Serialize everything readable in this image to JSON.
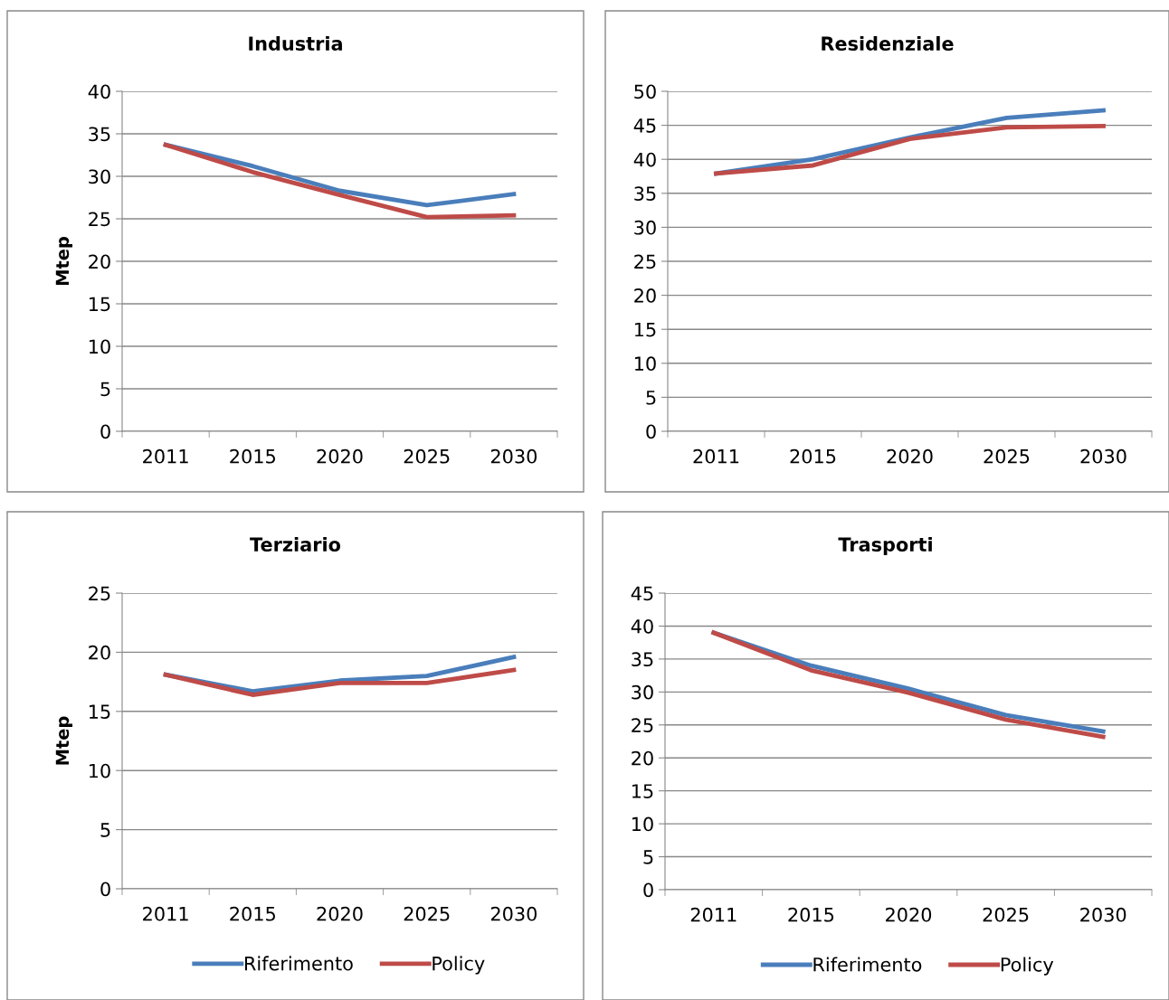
{
  "chart_data": [
    {
      "type": "line",
      "title": "Industria",
      "ylabel": "Mtep",
      "categories": [
        "2011",
        "2015",
        "2020",
        "2025",
        "2030"
      ],
      "ylim": [
        0,
        40
      ],
      "yticks": [
        0,
        5,
        10,
        15,
        20,
        25,
        30,
        35,
        40
      ],
      "grid": "y",
      "legend": false,
      "series": [
        {
          "color": "#4a7ebb",
          "values": [
            33.7,
            31.2,
            28.3,
            26.6,
            27.9
          ]
        },
        {
          "color": "#be4b48",
          "values": [
            33.7,
            30.5,
            27.8,
            25.2,
            25.4
          ]
        }
      ]
    },
    {
      "type": "line",
      "title": "Residenziale",
      "categories": [
        "2011",
        "2015",
        "2020",
        "2025",
        "2030"
      ],
      "ylim": [
        0,
        50
      ],
      "yticks": [
        0,
        5,
        10,
        15,
        20,
        25,
        30,
        35,
        40,
        45,
        50
      ],
      "grid": "y",
      "legend": false,
      "series": [
        {
          "color": "#4a7ebb",
          "values": [
            37.9,
            40.0,
            43.2,
            46.1,
            47.2
          ]
        },
        {
          "color": "#be4b48",
          "values": [
            37.9,
            39.1,
            43.0,
            44.7,
            44.9
          ]
        }
      ]
    },
    {
      "type": "line",
      "title": "Terziario",
      "ylabel": "Mtep",
      "categories": [
        "2011",
        "2015",
        "2020",
        "2025",
        "2030"
      ],
      "ylim": [
        0,
        25
      ],
      "yticks": [
        0,
        5,
        10,
        15,
        20,
        25
      ],
      "grid": "y",
      "legend": "bottom",
      "series": [
        {
          "name": "Riferimento",
          "color": "#4a7ebb",
          "values": [
            18.1,
            16.7,
            17.6,
            18.0,
            19.6
          ]
        },
        {
          "name": "Policy",
          "color": "#be4b48",
          "values": [
            18.1,
            16.4,
            17.4,
            17.4,
            18.5
          ]
        }
      ]
    },
    {
      "type": "line",
      "title": "Trasporti",
      "categories": [
        "2011",
        "2015",
        "2020",
        "2025",
        "2030"
      ],
      "ylim": [
        0,
        45
      ],
      "yticks": [
        0,
        5,
        10,
        15,
        20,
        25,
        30,
        35,
        40,
        45
      ],
      "grid": "y",
      "legend": "bottom",
      "series": [
        {
          "name": "Riferimento",
          "color": "#4a7ebb",
          "values": [
            39.0,
            34.0,
            30.5,
            26.5,
            24.0
          ]
        },
        {
          "name": "Policy",
          "color": "#be4b48",
          "values": [
            39.0,
            33.3,
            29.9,
            25.8,
            23.2
          ]
        }
      ]
    }
  ]
}
